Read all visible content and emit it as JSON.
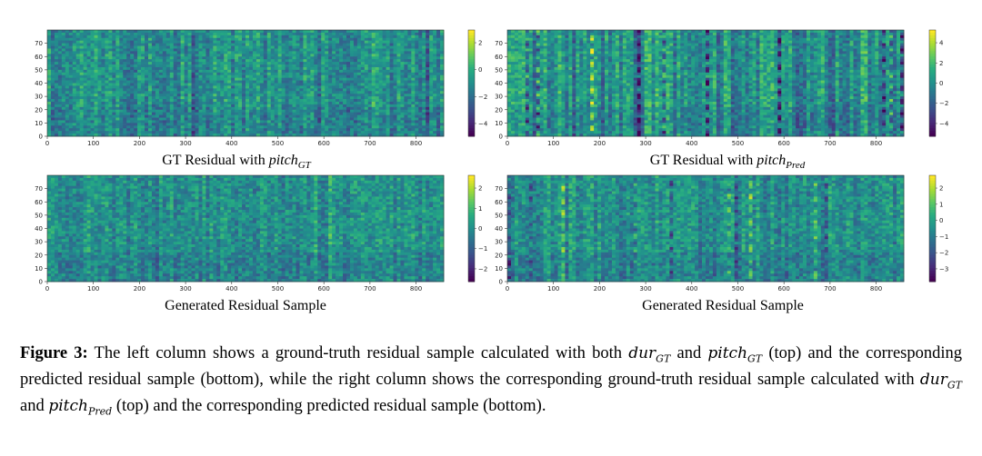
{
  "panels": [
    {
      "id": "top-left",
      "caption_prefix": "GT Residual with ",
      "caption_var": "pitch",
      "caption_sub": "GT",
      "x_ticks": [
        "0",
        "100",
        "200",
        "300",
        "400",
        "500",
        "600",
        "700",
        "800"
      ],
      "y_ticks": [
        "0",
        "10",
        "20",
        "30",
        "40",
        "50",
        "60",
        "70"
      ],
      "cbar_ticks": [
        "2",
        "0",
        "−2",
        "−4"
      ],
      "seed": 11,
      "contrast": 0.6,
      "wavy": false
    },
    {
      "id": "top-right",
      "caption_prefix": "GT Residual with ",
      "caption_var": "pitch",
      "caption_sub": "Pred",
      "x_ticks": [
        "0",
        "100",
        "200",
        "300",
        "400",
        "500",
        "600",
        "700",
        "800"
      ],
      "y_ticks": [
        "0",
        "10",
        "20",
        "30",
        "40",
        "50",
        "60",
        "70"
      ],
      "cbar_ticks": [
        "4",
        "2",
        "0",
        "−2",
        "−4"
      ],
      "seed": 23,
      "contrast": 1.0,
      "wavy": true
    },
    {
      "id": "bottom-left",
      "caption_prefix": "Generated Residual Sample",
      "caption_var": "",
      "caption_sub": "",
      "x_ticks": [
        "0",
        "100",
        "200",
        "300",
        "400",
        "500",
        "600",
        "700",
        "800"
      ],
      "y_ticks": [
        "0",
        "10",
        "20",
        "30",
        "40",
        "50",
        "60",
        "70"
      ],
      "cbar_ticks": [
        "2",
        "1",
        "0",
        "−1",
        "−2"
      ],
      "seed": 37,
      "contrast": 0.45,
      "wavy": false
    },
    {
      "id": "bottom-right",
      "caption_prefix": "Generated Residual Sample",
      "caption_var": "",
      "caption_sub": "",
      "x_ticks": [
        "0",
        "100",
        "200",
        "300",
        "400",
        "500",
        "600",
        "700",
        "800"
      ],
      "y_ticks": [
        "0",
        "10",
        "20",
        "30",
        "40",
        "50",
        "60",
        "70"
      ],
      "cbar_ticks": [
        "2",
        "1",
        "0",
        "−1",
        "−2",
        "−3"
      ],
      "seed": 53,
      "contrast": 0.55,
      "wavy": true
    }
  ],
  "figure_caption": {
    "label": "Figure 3:",
    "t1": " The left column shows a ground-truth residual sample calculated with both ",
    "m1": "dur",
    "m1_sub": "GT",
    "t2": " and ",
    "m2": "pitch",
    "m2_sub": "GT",
    "t3": " (top) and the corresponding predicted residual sample (bottom), while the right column shows the corresponding ground-truth residual sample calculated with ",
    "m3": "dur",
    "m3_sub": "GT",
    "t4": " and ",
    "m4": "pitch",
    "m4_sub": "Pred",
    "t5": " (top) and the corresponding predicted residual sample (bottom)."
  },
  "colors": {
    "viridis_low": "#440154",
    "viridis_mid": "#21918c",
    "viridis_high": "#fde725"
  }
}
